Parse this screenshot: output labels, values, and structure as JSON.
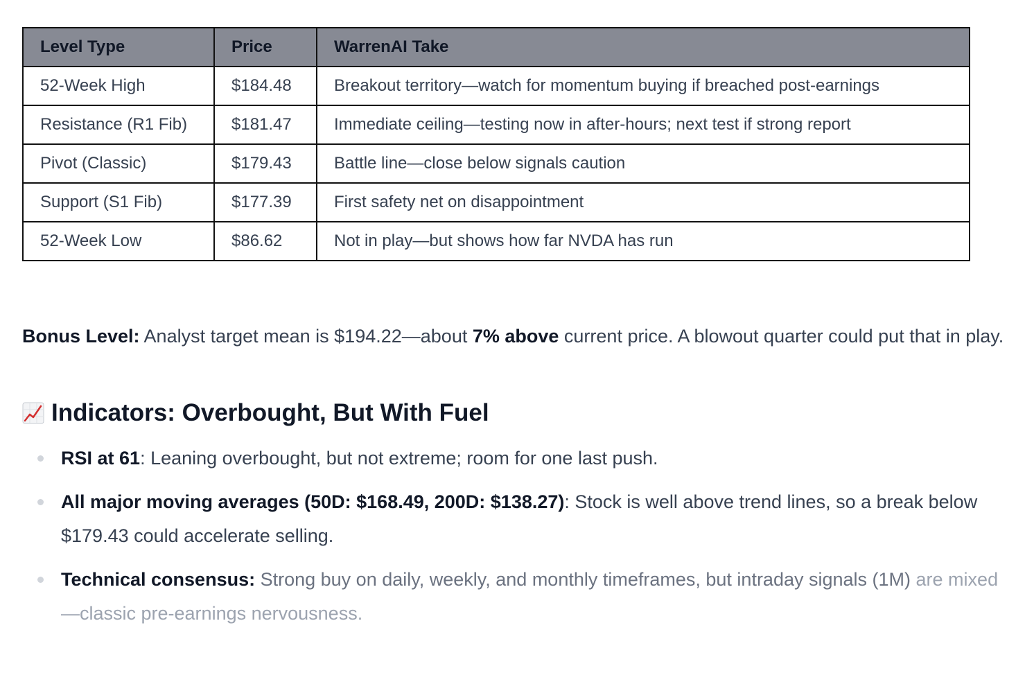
{
  "table": {
    "headers": [
      "Level Type",
      "Price",
      "WarrenAI Take"
    ],
    "rows": [
      [
        "52-Week High",
        "$184.48",
        "Breakout territory—watch for momentum buying if breached post-earnings"
      ],
      [
        "Resistance (R1 Fib)",
        "$181.47",
        "Immediate ceiling—testing now in after-hours; next test if strong report"
      ],
      [
        "Pivot (Classic)",
        "$179.43",
        "Battle line—close below signals caution"
      ],
      [
        "Support (S1 Fib)",
        "$177.39",
        "First safety net on disappointment"
      ],
      [
        "52-Week Low",
        "$86.62",
        "Not in play—but shows how far NVDA has run"
      ]
    ]
  },
  "bonus": {
    "label": "Bonus Level:",
    "text_before": " Analyst target mean is $194.22—about ",
    "bold_mid": "7% above",
    "text_after": " current price. A blowout quarter could put that in play."
  },
  "indicators": {
    "icon": "chart-increasing-icon",
    "title": "Indicators: Overbought, But With Fuel",
    "items": [
      {
        "bold": "RSI at 61",
        "text": ": Leaning overbought, but not extreme; room for one last push."
      },
      {
        "bold": "All major moving averages (50D: $168.49, 200D: $138.27)",
        "text": ": Stock is well above trend lines, so a break below $179.43 could accelerate selling."
      },
      {
        "bold": "Technical consensus:",
        "text": " Strong buy on daily, weekly, and monthly timeframes, but intraday signals (1M)",
        "text_faded": " are mixed—classic pre-earnings nervousness."
      }
    ]
  }
}
